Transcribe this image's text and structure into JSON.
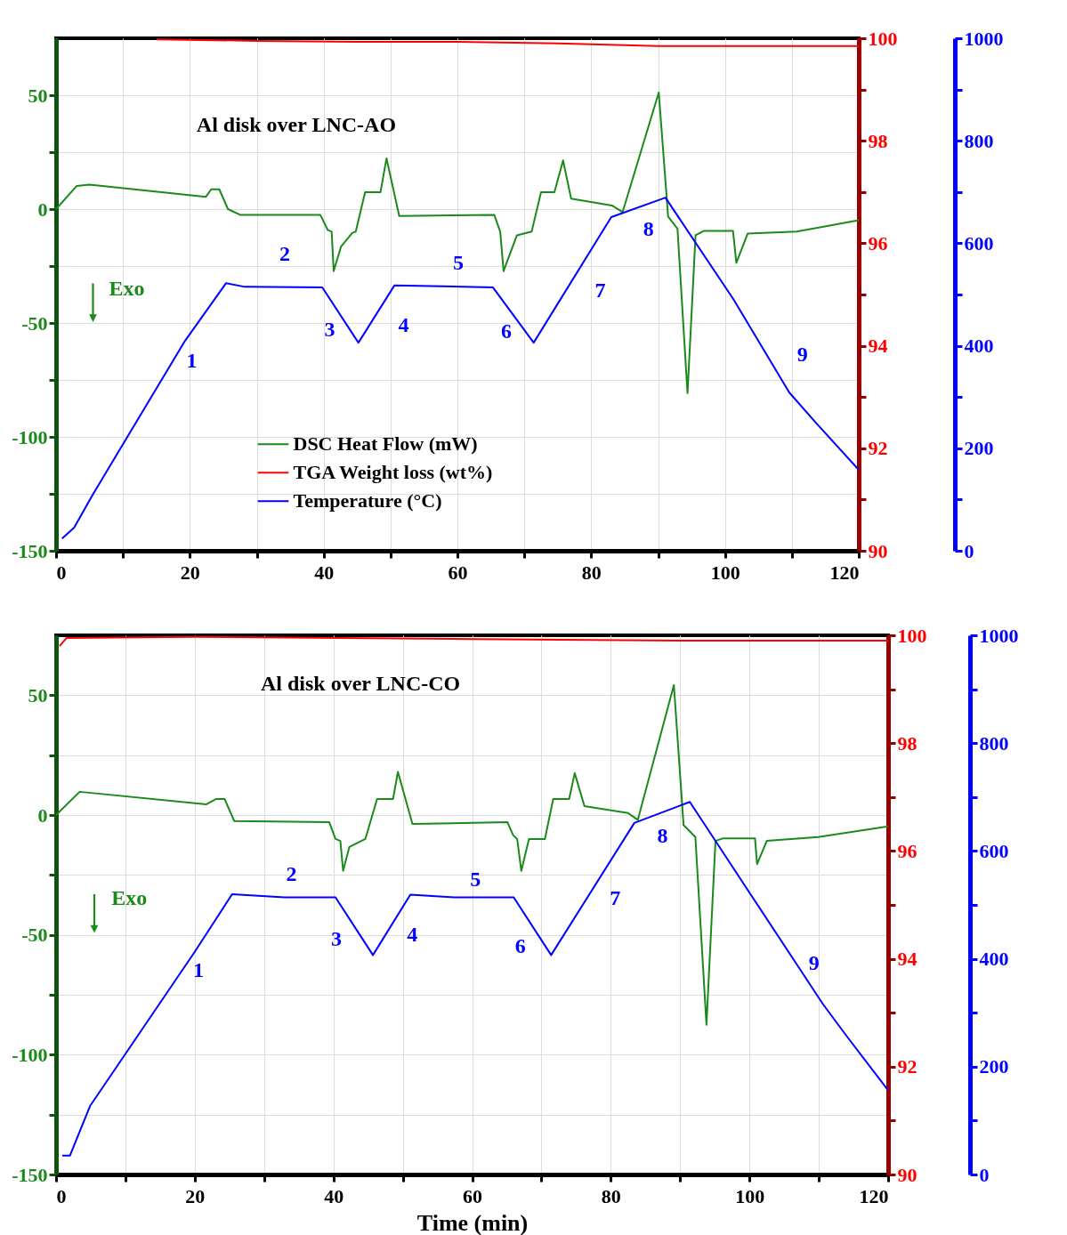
{
  "chart_data": [
    {
      "type": "line",
      "title": "Al disk over LNC-AO",
      "legend": "bottom",
      "grid": true,
      "xlim": [
        0,
        120
      ],
      "xticks": [
        0,
        {
          "value": 10,
          "label": null
        },
        20,
        {
          "value": 30,
          "label": null
        },
        40,
        {
          "value": 50,
          "label": null
        },
        60,
        {
          "value": 70,
          "label": null
        },
        80,
        {
          "value": 90,
          "label": null
        },
        100,
        {
          "value": 110,
          "label": null
        },
        120
      ],
      "ylim": [
        -150,
        75
      ],
      "yticks": [
        -150,
        {
          "value": -125,
          "label": null
        },
        -100,
        {
          "value": -75,
          "label": null
        },
        -50,
        {
          "value": -25,
          "label": null
        },
        0,
        {
          "value": 25,
          "label": null
        },
        50
      ],
      "y2lim": [
        90,
        100
      ],
      "y2ticks": [
        90,
        {
          "value": 91,
          "label": null
        },
        92,
        {
          "value": 93,
          "label": null
        },
        94,
        {
          "value": 95,
          "label": null
        },
        96,
        {
          "value": 97,
          "label": null
        },
        98,
        {
          "value": 99,
          "label": null
        },
        100
      ],
      "y3lim": [
        0,
        1000
      ],
      "y3ticks": [
        0,
        {
          "value": 100,
          "label": null
        },
        200,
        {
          "value": 300,
          "label": null
        },
        400,
        {
          "value": 500,
          "label": null
        },
        600,
        {
          "value": 700,
          "label": null
        },
        800,
        {
          "value": 900,
          "label": null
        },
        1000
      ],
      "series": [
        {
          "name": "DSC Heat Flow (mW)",
          "color": "#1a8a1a",
          "axis": "y",
          "x": [
            0,
            3.1,
            5,
            22.4,
            23.2,
            24.4,
            25.7,
            27.5,
            39.5,
            40.6,
            41.2,
            41.5,
            42.6,
            44.3,
            44.8,
            46.2,
            48.5,
            49.4,
            51.3,
            65.5,
            66.4,
            66.9,
            68.9,
            71.1,
            72.5,
            74.5,
            75.8,
            77,
            83.1,
            84.7,
            90.1,
            91.5,
            92.9,
            94.4,
            95.6,
            96.8,
            101.2,
            101.7,
            103.4,
            110.7,
            120
          ],
          "values": [
            0,
            10.2,
            10.7,
            5.4,
            8.7,
            8.7,
            0,
            -2.5,
            -2.5,
            -9.1,
            -9.9,
            -27.2,
            -16.5,
            -10.4,
            -9.9,
            7.4,
            7.4,
            22.3,
            -3,
            -2.5,
            -9.9,
            -27.2,
            -11.5,
            -9.9,
            7.4,
            7.4,
            21.4,
            4.6,
            1.6,
            -1.3,
            51.2,
            -3.3,
            -8.6,
            -80.8,
            -11.5,
            -9.6,
            -9.6,
            -23.6,
            -10.7,
            -9.9,
            -4.9
          ]
        },
        {
          "name": "TGA Weight loss (wt%)",
          "color": "#ff0000",
          "axis": "y2",
          "x": [
            15,
            30,
            45,
            60,
            75,
            90,
            105,
            120
          ],
          "values": [
            99.98,
            99.95,
            99.93,
            99.93,
            99.9,
            99.85,
            99.85,
            99.85
          ]
        },
        {
          "name": "Temperature (°C)",
          "color": "#0000ff",
          "axis": "y3",
          "x": [
            0.9,
            2.7,
            5.5,
            19.3,
            25.4,
            28.2,
            39.8,
            45.2,
            50.6,
            65.3,
            71.4,
            83,
            91.1,
            101.3,
            109.6,
            113.5,
            120
          ],
          "values": [
            24,
            45,
            110,
            410,
            522,
            515,
            514,
            406,
            518,
            514,
            406,
            651,
            689,
            490,
            309,
            251,
            158
          ]
        }
      ],
      "annotations": [
        "1",
        "2",
        "3",
        "4",
        "5",
        "6",
        "7",
        "8",
        "9",
        "Exo"
      ]
    },
    {
      "type": "line",
      "title": "Al disk over LNC-CO",
      "xlabel": "Time (min)",
      "grid": true,
      "xlim": [
        0,
        120
      ],
      "xticks": [
        0,
        {
          "value": 10,
          "label": null
        },
        20,
        {
          "value": 30,
          "label": null
        },
        40,
        {
          "value": 50,
          "label": null
        },
        60,
        {
          "value": 70,
          "label": null
        },
        80,
        {
          "value": 90,
          "label": null
        },
        100,
        {
          "value": 110,
          "label": null
        },
        120
      ],
      "ylim": [
        -150,
        75
      ],
      "yticks": [
        -150,
        {
          "value": -125,
          "label": null
        },
        -100,
        {
          "value": -75,
          "label": null
        },
        -50,
        {
          "value": -25,
          "label": null
        },
        0,
        {
          "value": 25,
          "label": null
        },
        50
      ],
      "y2lim": [
        90,
        100
      ],
      "y2ticks": [
        90,
        {
          "value": 91,
          "label": null
        },
        92,
        {
          "value": 93,
          "label": null
        },
        94,
        {
          "value": 95,
          "label": null
        },
        96,
        {
          "value": 97,
          "label": null
        },
        98,
        {
          "value": 99,
          "label": null
        },
        100
      ],
      "y3lim": [
        0,
        1000
      ],
      "y3ticks": [
        0,
        {
          "value": 100,
          "label": null
        },
        200,
        {
          "value": 300,
          "label": null
        },
        400,
        {
          "value": 500,
          "label": null
        },
        600,
        {
          "value": 700,
          "label": null
        },
        800,
        {
          "value": 900,
          "label": null
        },
        1000
      ],
      "series": [
        {
          "color": "#1a8a1a",
          "axis": "y",
          "x": [
            0,
            3.4,
            21.7,
            23.1,
            24.3,
            25.7,
            39.4,
            40.3,
            41,
            41.4,
            42.3,
            44.6,
            46.3,
            48.6,
            49.3,
            51.4,
            65.1,
            65.9,
            66.5,
            67.1,
            68.2,
            70.5,
            71.7,
            74,
            74.8,
            76.2,
            82.5,
            83.9,
            89.1,
            90.5,
            92.2,
            93.8,
            95.1,
            96.2,
            100.8,
            101.1,
            102.5,
            109.9,
            120
          ],
          "values": [
            0,
            9.7,
            4.5,
            6.7,
            6.7,
            -2.5,
            -3,
            -10,
            -10.8,
            -23.3,
            -13.3,
            -10,
            6.7,
            6.7,
            18,
            -3.7,
            -3,
            -8.3,
            -10,
            -23.3,
            -10,
            -10,
            6.7,
            6.7,
            17.5,
            3.7,
            0.8,
            -2,
            54.2,
            -4.2,
            -9.2,
            -87.5,
            -10.8,
            -9.7,
            -9.7,
            -20.5,
            -10.8,
            -9.2,
            -4.7
          ]
        },
        {
          "color": "#ff0000",
          "axis": "y2",
          "x": [
            0.5,
            1.5,
            20,
            60,
            90,
            120
          ],
          "values": [
            99.8,
            99.95,
            99.97,
            99.93,
            99.9,
            99.9
          ]
        },
        {
          "color": "#0000ff",
          "axis": "y3",
          "x": [
            0.9,
            2,
            4.9,
            20,
            25.4,
            32.9,
            40.3,
            45.7,
            51.1,
            57.4,
            66,
            71.4,
            83.4,
            91.4,
            100.3,
            110.6,
            114,
            120
          ],
          "values": [
            35,
            35,
            127,
            413,
            520,
            514,
            514,
            407,
            519,
            514,
            514,
            407,
            652,
            691,
            517,
            316,
            257,
            156
          ]
        }
      ],
      "annotations": [
        "1",
        "2",
        "3",
        "4",
        "5",
        "6",
        "7",
        "8",
        "9",
        "Exo"
      ]
    }
  ]
}
